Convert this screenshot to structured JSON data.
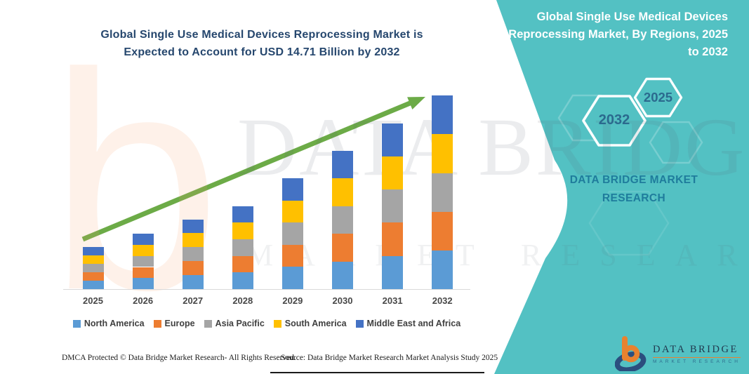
{
  "side_panel": {
    "title": "Global Single Use Medical Devices Reprocessing Market, By Regions, 2025 to 2032",
    "badge_end_year": "2032",
    "badge_start_year": "2025",
    "brand": "DATA BRIDGE MARKET RESEARCH",
    "panel_color": "#53C1C3",
    "badge_text_color": "#2B6A8E"
  },
  "watermark": {
    "big_text": "DATA BRIDGE",
    "sub_text": "MARKET RESEARCH",
    "letter": "b"
  },
  "chart_data": {
    "type": "bar",
    "stacked": true,
    "title": "Global Single Use Medical Devices Reprocessing Market is Expected to Account for USD 14.71 Billion by 2032",
    "unit": "USD Billion",
    "categories": [
      "2025",
      "2026",
      "2027",
      "2028",
      "2029",
      "2030",
      "2031",
      "2032"
    ],
    "series": [
      {
        "name": "North America",
        "color": "#5B9BD5",
        "values": [
          0.64,
          0.84,
          1.06,
          1.26,
          1.68,
          2.1,
          2.52,
          2.94
        ]
      },
      {
        "name": "Europe",
        "color": "#ED7D31",
        "values": [
          0.64,
          0.84,
          1.06,
          1.26,
          1.68,
          2.1,
          2.52,
          2.94
        ]
      },
      {
        "name": "Asia Pacific",
        "color": "#A5A5A5",
        "values": [
          0.64,
          0.84,
          1.06,
          1.26,
          1.68,
          2.1,
          2.52,
          2.94
        ]
      },
      {
        "name": "South America",
        "color": "#FFC000",
        "values": [
          0.64,
          0.84,
          1.06,
          1.26,
          1.68,
          2.1,
          2.52,
          2.95
        ]
      },
      {
        "name": "Middle East and Africa",
        "color": "#4472C4",
        "values": [
          0.64,
          0.84,
          1.06,
          1.26,
          1.68,
          2.1,
          2.52,
          2.94
        ]
      }
    ],
    "totals": [
      3.2,
      4.2,
      5.3,
      6.3,
      8.4,
      10.5,
      12.6,
      14.71
    ],
    "projected_value_2032_usd_billion": 14.71,
    "xlabel": "",
    "ylabel": "",
    "ylim": [
      0,
      16
    ],
    "grid": false,
    "axis_visible": false,
    "legend_position": "bottom",
    "trend_arrow": {
      "present": true,
      "color": "#6CAB47"
    }
  },
  "footer": {
    "dmca": "DMCA Protected © Data Bridge Market Research-  All Rights Reserved.",
    "source": "Source: Data Bridge Market Research  Market Analysis Study 2025"
  },
  "logo": {
    "name": "DATA BRIDGE",
    "tagline": "MARKET RESEARCH"
  }
}
